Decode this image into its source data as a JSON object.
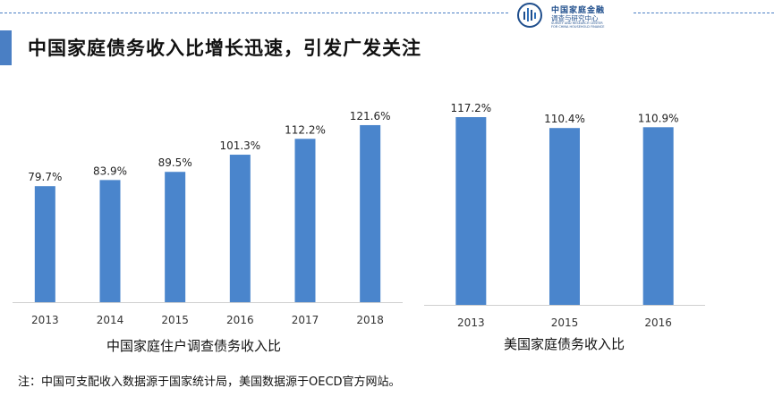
{
  "header": {
    "title": "中国家庭债务收入比增长迅速，引发广发关注",
    "logo_name": "中国家庭金融",
    "logo_subtitle": "调查与研究中心",
    "logo_english": "SURVEY AND RESEARCH CENTER FOR CHINA HOUSEHOLD FINANCE"
  },
  "colors": {
    "bar": "#4a85cc",
    "accent": "#4a7fc4"
  },
  "chart_data": [
    {
      "type": "bar",
      "title": "中国家庭住户调查债务收入比",
      "categories": [
        "2013",
        "2014",
        "2015",
        "2016",
        "2017",
        "2018"
      ],
      "values": [
        79.7,
        83.9,
        89.5,
        101.3,
        112.2,
        121.6
      ],
      "value_labels": [
        "79.7%",
        "83.9%",
        "89.5%",
        "101.3%",
        "112.2%",
        "121.6%"
      ],
      "unit": "%",
      "ylim": [
        0,
        140
      ],
      "grid": false,
      "legend": "none"
    },
    {
      "type": "bar",
      "title": "美国家庭债务收入比",
      "categories": [
        "2013",
        "2015",
        "2016"
      ],
      "values": [
        117.2,
        110.4,
        110.9
      ],
      "value_labels": [
        "117.2%",
        "110.4%",
        "110.9%"
      ],
      "unit": "%",
      "ylim": [
        0,
        120
      ],
      "grid": false,
      "legend": "none"
    }
  ],
  "footnote": "注：中国可支配收入数据源于国家统计局，美国数据源于OECD官方网站。"
}
